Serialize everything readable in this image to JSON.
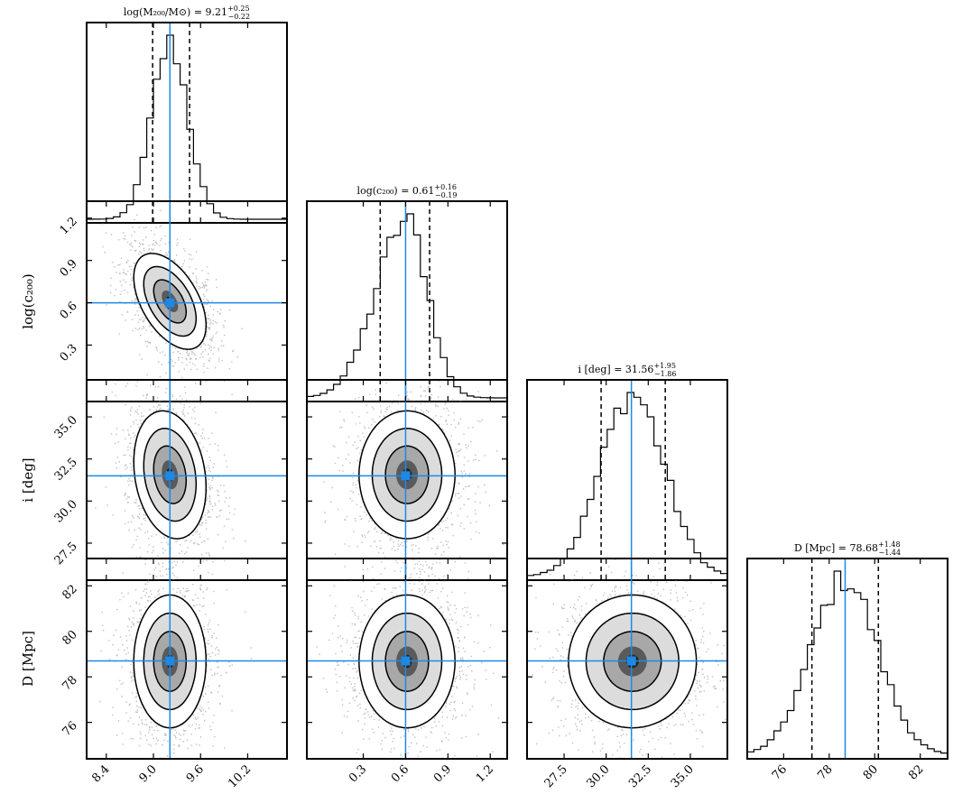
{
  "chart_data": {
    "type": "corner",
    "parameters": [
      {
        "key": "logM",
        "axis_label": "log(M₂₀₀/M⊙)",
        "title_prefix": "log(M₂₀₀/M⊙) = ",
        "median": 9.21,
        "upper_err": "+0.25",
        "lower_err": "−0.22",
        "range": [
          8.15,
          10.7
        ],
        "ticks": [
          8.4,
          9.0,
          9.6,
          10.2
        ],
        "tick_labels": [
          "8.4",
          "9.0",
          "9.6",
          "10.2"
        ],
        "quantiles": [
          8.99,
          9.21,
          9.46
        ],
        "sigma": 0.23,
        "truth": 9.21
      },
      {
        "key": "logc",
        "axis_label": "log(c₂₀₀)",
        "title_prefix": "log(c₂₀₀) = ",
        "median": 0.61,
        "upper_err": "+0.16",
        "lower_err": "−0.19",
        "range": [
          -0.1,
          1.32
        ],
        "ticks": [
          0.3,
          0.6,
          0.9,
          1.2
        ],
        "tick_labels": [
          "0.3",
          "0.6",
          "0.9",
          "1.2"
        ],
        "quantiles": [
          0.42,
          0.61,
          0.77
        ],
        "sigma": 0.17,
        "truth": 0.6
      },
      {
        "key": "inc",
        "axis_label": "i [deg]",
        "title_prefix": "i [deg] = ",
        "median": 31.56,
        "upper_err": "+1.95",
        "lower_err": "−1.86",
        "range": [
          25.3,
          37.2
        ],
        "ticks": [
          27.5,
          30.0,
          32.5,
          35.0
        ],
        "tick_labels": [
          "27.5",
          "30.0",
          "32.5",
          "35.0"
        ],
        "quantiles": [
          29.7,
          31.56,
          33.51
        ],
        "sigma": 1.9,
        "truth": 31.5
      },
      {
        "key": "dist",
        "axis_label": "D [Mpc]",
        "title_prefix": "D [Mpc] = ",
        "median": 78.68,
        "upper_err": "+1.48",
        "lower_err": "−1.44",
        "range": [
          74.4,
          83.2
        ],
        "ticks": [
          76,
          78,
          80,
          82
        ],
        "tick_labels": [
          "76",
          "78",
          "80",
          "82"
        ],
        "quantiles": [
          77.24,
          78.68,
          80.16
        ],
        "sigma": 1.46,
        "truth": 78.7
      }
    ],
    "correlations": {
      "logM-logc": -0.5,
      "logM-inc": -0.2
    },
    "truth_color": "#1e88e5"
  }
}
